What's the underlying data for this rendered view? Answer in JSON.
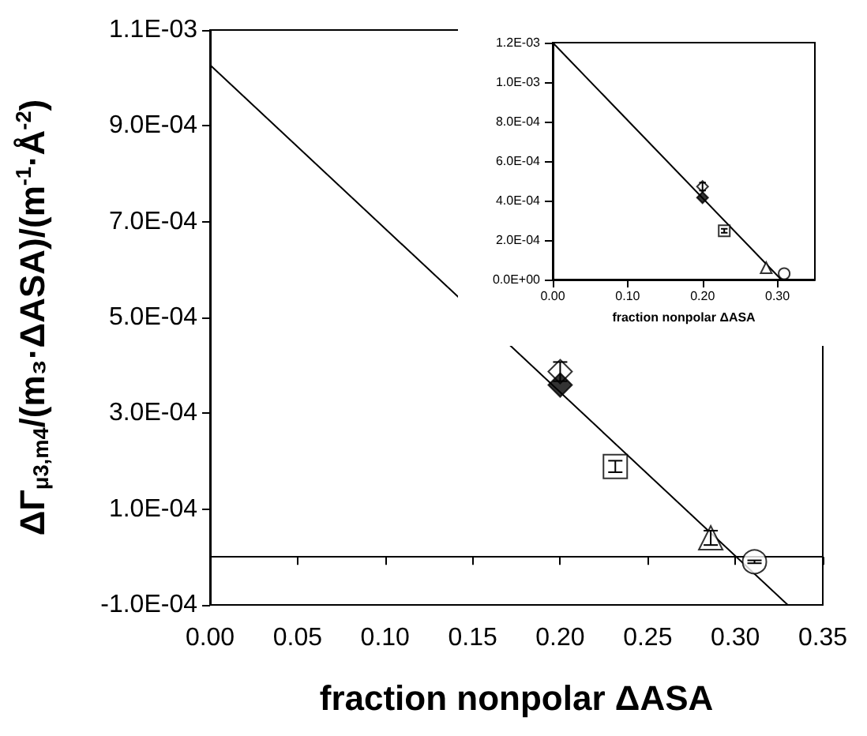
{
  "chart_data": [
    {
      "type": "scatter",
      "xlabel": "fraction nonpolar ΔASA",
      "ylabel": "ΔΓ$_{μ3,m4}$/(m₃·ΔASA)/(m$^{-1}$·Å$^{-2}$)",
      "xlim": [
        0,
        0.35
      ],
      "ylim": [
        -0.0001,
        0.0011
      ],
      "xticks": [
        {
          "value": 0,
          "label": "0.00"
        },
        {
          "value": 0.05,
          "label": "0.05"
        },
        {
          "value": 0.1,
          "label": "0.10"
        },
        {
          "value": 0.15,
          "label": "0.15"
        },
        {
          "value": 0.2,
          "label": "0.20"
        },
        {
          "value": 0.25,
          "label": "0.25"
        },
        {
          "value": 0.3,
          "label": "0.30"
        },
        {
          "value": 0.35,
          "label": "0.35"
        }
      ],
      "yticks": [
        {
          "value": -0.0001,
          "label": "-1.0E-04"
        },
        {
          "value": 0.0001,
          "label": "1.0E-04"
        },
        {
          "value": 0.0003,
          "label": "3.0E-04"
        },
        {
          "value": 0.0005,
          "label": "5.0E-04"
        },
        {
          "value": 0.0007,
          "label": "7.0E-04"
        },
        {
          "value": 0.0009,
          "label": "9.0E-04"
        },
        {
          "value": 0.0011,
          "label": "1.1E-03"
        }
      ],
      "series": [
        {
          "type": "line",
          "x": [
            0,
            0.33
          ],
          "values": [
            0.001027,
            -0.0001
          ],
          "color": "#000000",
          "marker": "none",
          "line_style": "solid"
        },
        {
          "x": [
            0.2
          ],
          "values": [
            0.000387
          ],
          "errors": [
            2e-05
          ],
          "color": "#ffffff",
          "marker": "diamond"
        },
        {
          "x": [
            0.2
          ],
          "values": [
            0.000359
          ],
          "color": "#000000",
          "marker": "diamond"
        },
        {
          "x": [
            0.2315
          ],
          "values": [
            0.000189
          ],
          "errors": [
            1.2e-05
          ],
          "color": "#ffffff",
          "marker": "square"
        },
        {
          "x": [
            0.286
          ],
          "values": [
            4e-05
          ],
          "errors": [
            1.5e-05
          ],
          "color": "#ffffff",
          "marker": "triangle"
        },
        {
          "x": [
            0.311
          ],
          "values": [
            -1e-05
          ],
          "errors": [
            3e-06
          ],
          "color": "#ffffff",
          "marker": "circle"
        }
      ]
    },
    {
      "type": "scatter",
      "xlabel": "fraction nonpolar ΔASA",
      "xlim": [
        0,
        0.35
      ],
      "ylim": [
        0,
        0.0012
      ],
      "xticks": [
        {
          "value": 0,
          "label": "0.00"
        },
        {
          "value": 0.1,
          "label": "0.10"
        },
        {
          "value": 0.2,
          "label": "0.20"
        },
        {
          "value": 0.3,
          "label": "0.30"
        }
      ],
      "yticks": [
        {
          "value": 0,
          "label": "0.0E+00"
        },
        {
          "value": 0.0002,
          "label": "2.0E-04"
        },
        {
          "value": 0.0004,
          "label": "4.0E-04"
        },
        {
          "value": 0.0006,
          "label": "6.0E-04"
        },
        {
          "value": 0.0008,
          "label": "8.0E-04"
        },
        {
          "value": 0.001,
          "label": "1.0E-03"
        },
        {
          "value": 0.0012,
          "label": "1.2E-03"
        }
      ],
      "series": [
        {
          "type": "line",
          "x": [
            0,
            0.305
          ],
          "values": [
            0.0012,
            0
          ],
          "color": "#000000",
          "marker": "none",
          "line_style": "solid"
        },
        {
          "x": [
            0.2
          ],
          "values": [
            0.000471
          ],
          "errors": [
            2e-05
          ],
          "color": "#ffffff",
          "marker": "diamond"
        },
        {
          "x": [
            0.2
          ],
          "values": [
            0.000415
          ],
          "color": "#000000",
          "marker": "diamond"
        },
        {
          "x": [
            0.229
          ],
          "values": [
            0.000247
          ],
          "errors": [
            1e-05
          ],
          "color": "#ffffff",
          "marker": "square"
        },
        {
          "x": [
            0.285
          ],
          "values": [
            6e-05
          ],
          "color": "#ffffff",
          "marker": "triangle"
        },
        {
          "x": [
            0.309
          ],
          "values": [
            3e-05
          ],
          "color": "#ffffff",
          "marker": "circle"
        }
      ]
    }
  ]
}
